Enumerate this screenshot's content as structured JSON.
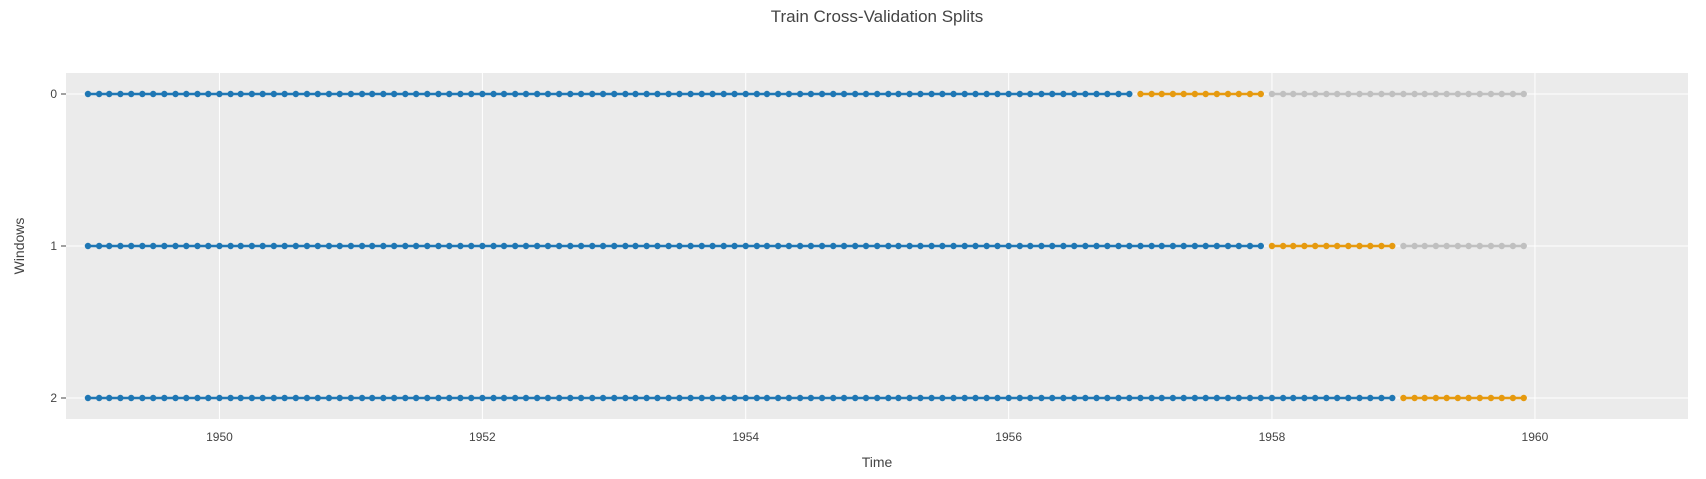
{
  "chart_data": {
    "type": "scatter",
    "title": "Train Cross-Validation Splits",
    "xlabel": "Time",
    "ylabel": "Windows",
    "x_axis": {
      "type": "date",
      "range": [
        "1948-11-01",
        "1961-03-01"
      ],
      "tick_labels": [
        "1950",
        "1952",
        "1954",
        "1956",
        "1958",
        "1960"
      ]
    },
    "y_axis": {
      "type": "category",
      "tick_labels": [
        "0",
        "1",
        "2"
      ],
      "reversed": true
    },
    "grid": true,
    "legend": "none",
    "colors": {
      "train": "#1f77b4",
      "test": "#e69a0f",
      "unused": "#c0c0c0",
      "plot_background": "#ebebeb",
      "grid": "#ffffff"
    },
    "markers": "lines+markers",
    "series": [
      {
        "window": "0",
        "segments": [
          {
            "role": "train",
            "start": "1949-01",
            "end": "1956-12"
          },
          {
            "role": "test",
            "start": "1957-01",
            "end": "1957-12"
          },
          {
            "role": "unused",
            "start": "1958-01",
            "end": "1959-12"
          }
        ]
      },
      {
        "window": "1",
        "segments": [
          {
            "role": "train",
            "start": "1949-01",
            "end": "1957-12"
          },
          {
            "role": "test",
            "start": "1958-01",
            "end": "1958-12"
          },
          {
            "role": "unused",
            "start": "1959-01",
            "end": "1959-12"
          }
        ]
      },
      {
        "window": "2",
        "segments": [
          {
            "role": "train",
            "start": "1949-01",
            "end": "1958-12"
          },
          {
            "role": "test",
            "start": "1959-01",
            "end": "1959-12"
          }
        ]
      }
    ]
  }
}
